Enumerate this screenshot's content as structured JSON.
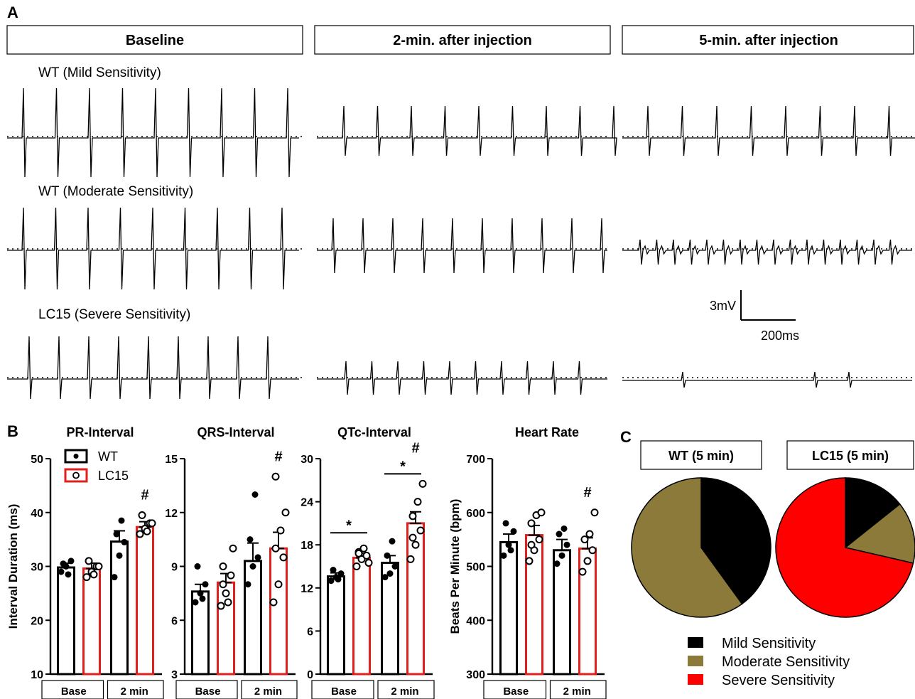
{
  "panelA": {
    "letter": "A",
    "columns": [
      "Baseline",
      "2-min. after injection",
      "5-min. after injection"
    ],
    "rows": [
      {
        "label": "WT (Mild Sensitivity)"
      },
      {
        "label": "WT (Moderate Sensitivity)"
      },
      {
        "label": "LC15 (Severe Sensitivity)"
      }
    ],
    "scalebar": {
      "voltage": "3mV",
      "time": "200ms"
    }
  },
  "panelB": {
    "letter": "B",
    "legend": {
      "wt": "WT",
      "lc15": "LC15"
    },
    "colors": {
      "wt": "#000000",
      "lc15": "#e0201c"
    }
  },
  "panelC": {
    "letter": "C",
    "legend": [
      "Mild Sensitivity",
      "Moderate Sensitivity",
      "Severe Sensitivity"
    ]
  },
  "chart_data": [
    {
      "type": "bar",
      "title": "PR-Interval",
      "ylabel": "Interval Duration (ms)",
      "ylim": [
        10,
        50
      ],
      "yticks": [
        10,
        20,
        30,
        40,
        50
      ],
      "groups": [
        "Base",
        "2 min"
      ],
      "series": [
        {
          "name": "WT",
          "values": [
            29.8,
            34.6
          ],
          "sem": [
            0.8,
            2.0
          ],
          "points": [
            [
              29.0,
              30.0,
              31.0,
              30.5,
              28.5
            ],
            [
              28.0,
              32.0,
              34.5,
              36.0,
              38.5
            ]
          ]
        },
        {
          "name": "LC15",
          "values": [
            29.6,
            37.3
          ],
          "sem": [
            1.0,
            1.0
          ],
          "points": [
            [
              28.0,
              29.0,
              30.0,
              31.0,
              28.5,
              30.0
            ],
            [
              36.0,
              37.0,
              38.0,
              39.5,
              36.5,
              38.0
            ]
          ]
        }
      ],
      "annotations": [
        {
          "text": "#",
          "group": "2 min",
          "series": "LC15"
        }
      ]
    },
    {
      "type": "bar",
      "title": "QRS-Interval",
      "ylabel": "",
      "ylim": [
        3,
        15
      ],
      "yticks": [
        3,
        6,
        9,
        12,
        15
      ],
      "groups": [
        "Base",
        "2 min"
      ],
      "series": [
        {
          "name": "WT",
          "values": [
            7.6,
            9.3
          ],
          "sem": [
            0.4,
            1.0
          ],
          "points": [
            [
              7.0,
              7.5,
              8.0,
              9.0,
              7.2
            ],
            [
              8.0,
              9.0,
              9.5,
              10.5,
              13.0
            ]
          ]
        },
        {
          "name": "LC15",
          "values": [
            8.1,
            10.0
          ],
          "sem": [
            0.5,
            0.9
          ],
          "points": [
            [
              6.8,
              7.5,
              8.5,
              9.0,
              7.0,
              10.0,
              8.0
            ],
            [
              7.0,
              8.0,
              9.5,
              10.0,
              11.0,
              12.0,
              14.0
            ]
          ]
        }
      ],
      "annotations": [
        {
          "text": "#",
          "group": "2 min",
          "series": "LC15"
        }
      ]
    },
    {
      "type": "bar",
      "title": "QTc-Interval",
      "ylabel": "",
      "ylim": [
        0,
        30
      ],
      "yticks": [
        0,
        6,
        12,
        18,
        24,
        30
      ],
      "groups": [
        "Base",
        "2 min"
      ],
      "series": [
        {
          "name": "WT",
          "values": [
            13.6,
            15.5
          ],
          "sem": [
            0.5,
            1.0
          ],
          "points": [
            [
              13.0,
              13.5,
              14.0,
              14.5,
              13.2
            ],
            [
              13.5,
              14.0,
              15.0,
              16.5,
              18.5
            ]
          ]
        },
        {
          "name": "LC15",
          "values": [
            16.2,
            21.0
          ],
          "sem": [
            0.6,
            1.6
          ],
          "points": [
            [
              15.0,
              16.0,
              16.5,
              17.0,
              17.5,
              15.5,
              16.8
            ],
            [
              16.0,
              18.0,
              20.0,
              22.0,
              24.0,
              26.5,
              19.0
            ]
          ]
        }
      ],
      "annotations": [
        {
          "text": "*",
          "group": "Base",
          "series": "both"
        },
        {
          "text": "*",
          "group": "2 min",
          "series": "both"
        },
        {
          "text": "#",
          "group": "2 min",
          "series": "LC15"
        }
      ]
    },
    {
      "type": "bar",
      "title": "Heart Rate",
      "ylabel": "Beats Per Minute (bpm)",
      "ylim": [
        300,
        700
      ],
      "yticks": [
        300,
        400,
        500,
        600,
        700
      ],
      "groups": [
        "Base",
        "2 min"
      ],
      "series": [
        {
          "name": "WT",
          "values": [
            545,
            530
          ],
          "sem": [
            15,
            20
          ],
          "points": [
            [
              520,
              540,
              565,
              580,
              530
            ],
            [
              505,
              520,
              540,
              560,
              570
            ]
          ]
        },
        {
          "name": "LC15",
          "values": [
            558,
            533
          ],
          "sem": [
            18,
            20
          ],
          "points": [
            [
              510,
              530,
              550,
              580,
              595,
              600,
              540
            ],
            [
              490,
              510,
              530,
              550,
              560,
              600
            ]
          ]
        }
      ],
      "annotations": [
        {
          "text": "#",
          "group": "2 min",
          "series": "LC15"
        }
      ]
    },
    {
      "type": "pie",
      "title": "WT (5 min)",
      "categories": [
        "Mild Sensitivity",
        "Moderate Sensitivity"
      ],
      "values": [
        40,
        60
      ],
      "colors": [
        "#000000",
        "#8b7a3a"
      ]
    },
    {
      "type": "pie",
      "title": "LC15 (5 min)",
      "categories": [
        "Mild Sensitivity",
        "Moderate Sensitivity",
        "Severe Sensitivity"
      ],
      "values": [
        14.3,
        14.3,
        71.4
      ],
      "colors": [
        "#000000",
        "#8b7a3a",
        "#ff0000"
      ]
    }
  ]
}
